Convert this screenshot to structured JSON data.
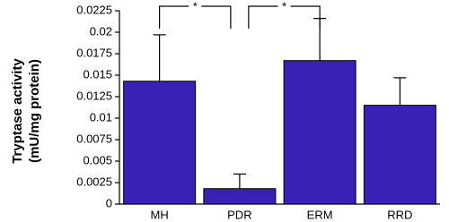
{
  "chart_data": {
    "type": "bar",
    "y_label": [
      "Tryptase activity",
      "(mU/mg protein)"
    ],
    "categories": [
      "MH",
      "PDR",
      "ERM",
      "RRD"
    ],
    "values": [
      0.0143,
      0.0018,
      0.0167,
      0.0115
    ],
    "errors": [
      0.0054,
      0.0017,
      0.0049,
      0.0032
    ],
    "color": "#3a21b6",
    "ylim": [
      0,
      0.0225
    ],
    "yticks": [
      0,
      0.0025,
      0.005,
      0.0075,
      0.01,
      0.0125,
      0.015,
      0.0175,
      0.02,
      0.0225
    ],
    "annotations": [
      {
        "text": "*",
        "from": "MH",
        "to": "PDR"
      },
      {
        "text": "*",
        "from": "PDR",
        "to": "ERM"
      }
    ]
  }
}
